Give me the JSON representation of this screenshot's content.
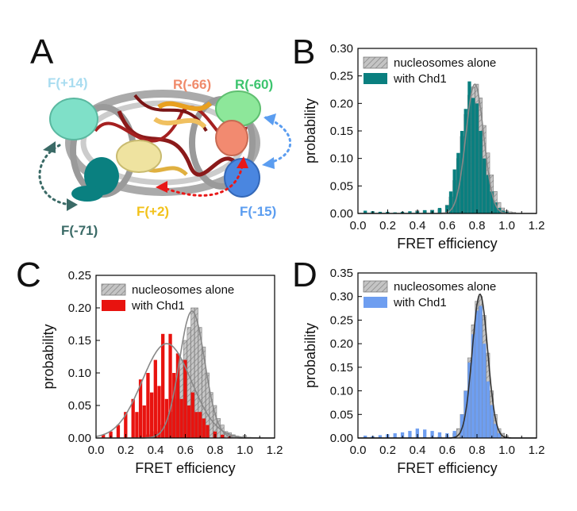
{
  "panels": {
    "A": {
      "letter": "A",
      "labels": [
        {
          "key": "f14",
          "text": "F(+14)",
          "color": "#a8dcf0"
        },
        {
          "key": "r66",
          "text": "R(-66)",
          "color": "#f08a6a"
        },
        {
          "key": "r60",
          "text": "R(-60)",
          "color": "#3cc46e"
        },
        {
          "key": "f2",
          "text": "F(+2)",
          "color": "#f2c21b"
        },
        {
          "key": "f15",
          "text": "F(-15)",
          "color": "#5b9df0"
        },
        {
          "key": "f71",
          "text": "F(-71)",
          "color": "#3a6a66"
        }
      ]
    },
    "B": {
      "letter": "B"
    },
    "C": {
      "letter": "C"
    },
    "D": {
      "letter": "D"
    }
  },
  "chart_data": [
    {
      "panel": "B",
      "type": "bar",
      "xlabel": "FRET efficiency",
      "ylabel": "probability",
      "xlim": [
        0.0,
        1.2
      ],
      "ylim": [
        0.0,
        0.3
      ],
      "xticks": [
        "0.0",
        "0.2",
        "0.4",
        "0.6",
        "0.8",
        "1.0",
        "1.2"
      ],
      "yticks": [
        "0.00",
        "0.05",
        "0.10",
        "0.15",
        "0.20",
        "0.25",
        "0.30"
      ],
      "legend_position": "top-left",
      "bin_width": 0.025,
      "series": [
        {
          "name": "nucleosomes alone",
          "color": "#b5b5b5",
          "hatched": true,
          "x": [
            0.4,
            0.45,
            0.5,
            0.55,
            0.6,
            0.625,
            0.65,
            0.675,
            0.7,
            0.725,
            0.75,
            0.775,
            0.8,
            0.825,
            0.85,
            0.875,
            0.9,
            0.925,
            0.95,
            0.975,
            1.0,
            1.025,
            1.05
          ],
          "values": [
            0.005,
            0.005,
            0.006,
            0.008,
            0.015,
            0.03,
            0.06,
            0.1,
            0.14,
            0.18,
            0.215,
            0.23,
            0.235,
            0.21,
            0.16,
            0.11,
            0.07,
            0.04,
            0.02,
            0.01,
            0.005,
            0.003,
            0.002
          ]
        },
        {
          "name": "with Chd1",
          "color": "#0a7f7f",
          "hatched": false,
          "x": [
            0.05,
            0.1,
            0.15,
            0.2,
            0.25,
            0.3,
            0.35,
            0.4,
            0.45,
            0.5,
            0.55,
            0.6,
            0.625,
            0.65,
            0.675,
            0.7,
            0.725,
            0.75,
            0.775,
            0.8,
            0.825,
            0.85,
            0.875,
            0.9,
            0.925,
            0.95,
            0.975,
            1.0
          ],
          "values": [
            0.005,
            0.004,
            0.003,
            0.003,
            0.002,
            0.003,
            0.004,
            0.004,
            0.006,
            0.006,
            0.01,
            0.015,
            0.04,
            0.08,
            0.11,
            0.15,
            0.19,
            0.24,
            0.21,
            0.2,
            0.15,
            0.1,
            0.07,
            0.04,
            0.02,
            0.01,
            0.005,
            0.003
          ]
        }
      ],
      "fits": [
        {
          "color": "#888888",
          "mu": 0.785,
          "sigma": 0.06,
          "amp": 0.235
        }
      ]
    },
    {
      "panel": "C",
      "type": "bar",
      "xlabel": "FRET efficiency",
      "ylabel": "probability",
      "xlim": [
        0.0,
        1.2
      ],
      "ylim": [
        0.0,
        0.25
      ],
      "xticks": [
        "0.0",
        "0.2",
        "0.4",
        "0.6",
        "0.8",
        "1.0",
        "1.2"
      ],
      "yticks": [
        "0.00",
        "0.05",
        "0.10",
        "0.15",
        "0.20",
        "0.25"
      ],
      "legend_position": "top-right",
      "bin_width": 0.025,
      "series": [
        {
          "name": "nucleosomes alone",
          "color": "#b5b5b5",
          "hatched": true,
          "x": [
            0.35,
            0.4,
            0.45,
            0.5,
            0.525,
            0.55,
            0.575,
            0.6,
            0.625,
            0.65,
            0.675,
            0.7,
            0.725,
            0.75,
            0.775,
            0.8,
            0.825,
            0.85,
            0.875,
            0.9,
            0.925,
            0.95,
            1.0
          ],
          "values": [
            0.005,
            0.01,
            0.02,
            0.04,
            0.06,
            0.09,
            0.12,
            0.15,
            0.17,
            0.2,
            0.2,
            0.17,
            0.14,
            0.1,
            0.07,
            0.05,
            0.03,
            0.02,
            0.01,
            0.008,
            0.005,
            0.003,
            0.004
          ]
        },
        {
          "name": "with Chd1",
          "color": "#e8130f",
          "hatched": false,
          "x": [
            0.05,
            0.1,
            0.15,
            0.2,
            0.25,
            0.275,
            0.3,
            0.325,
            0.35,
            0.375,
            0.4,
            0.425,
            0.45,
            0.475,
            0.5,
            0.525,
            0.55,
            0.575,
            0.6,
            0.625,
            0.65,
            0.675,
            0.7,
            0.725,
            0.75,
            0.8,
            0.85,
            0.9
          ],
          "values": [
            0.005,
            0.01,
            0.02,
            0.04,
            0.06,
            0.04,
            0.09,
            0.05,
            0.1,
            0.07,
            0.12,
            0.08,
            0.16,
            0.06,
            0.16,
            0.1,
            0.13,
            0.06,
            0.12,
            0.05,
            0.07,
            0.04,
            0.04,
            0.03,
            0.02,
            0.01,
            0.005,
            0.003
          ]
        }
      ],
      "fits": [
        {
          "color": "#888888",
          "mu": 0.475,
          "sigma": 0.165,
          "amp": 0.145
        },
        {
          "color": "#888888",
          "mu": 0.645,
          "sigma": 0.085,
          "amp": 0.195
        }
      ]
    },
    {
      "panel": "D",
      "type": "bar",
      "xlabel": "FRET efficiency",
      "ylabel": "probability",
      "xlim": [
        0.0,
        1.2
      ],
      "ylim": [
        0.0,
        0.35
      ],
      "xticks": [
        "0.0",
        "0.2",
        "0.4",
        "0.6",
        "0.8",
        "1.0",
        "1.2"
      ],
      "yticks": [
        "0.00",
        "0.05",
        "0.10",
        "0.15",
        "0.20",
        "0.25",
        "0.30",
        "0.35"
      ],
      "legend_position": "top-left",
      "bin_width": 0.025,
      "series": [
        {
          "name": "nucleosomes alone",
          "color": "#b5b5b5",
          "hatched": true,
          "x": [
            0.55,
            0.6,
            0.65,
            0.675,
            0.7,
            0.725,
            0.75,
            0.775,
            0.8,
            0.825,
            0.85,
            0.875,
            0.9,
            0.925,
            0.95,
            0.975,
            1.0
          ],
          "values": [
            0.003,
            0.005,
            0.01,
            0.02,
            0.05,
            0.1,
            0.17,
            0.24,
            0.29,
            0.3,
            0.26,
            0.18,
            0.1,
            0.05,
            0.02,
            0.01,
            0.005
          ]
        },
        {
          "name": "with Chd1",
          "color": "#6e9ef0",
          "hatched": false,
          "x": [
            0.05,
            0.1,
            0.15,
            0.2,
            0.25,
            0.3,
            0.35,
            0.4,
            0.45,
            0.5,
            0.55,
            0.6,
            0.65,
            0.7,
            0.725,
            0.75,
            0.775,
            0.8,
            0.825,
            0.85,
            0.875,
            0.9,
            0.925,
            0.95
          ],
          "values": [
            0.005,
            0.004,
            0.006,
            0.008,
            0.01,
            0.012,
            0.015,
            0.02,
            0.018,
            0.015,
            0.012,
            0.01,
            0.015,
            0.05,
            0.1,
            0.16,
            0.22,
            0.27,
            0.28,
            0.2,
            0.12,
            0.07,
            0.03,
            0.01
          ]
        }
      ],
      "fits": [
        {
          "color": "#333333",
          "mu": 0.82,
          "sigma": 0.052,
          "amp": 0.305
        }
      ]
    }
  ]
}
